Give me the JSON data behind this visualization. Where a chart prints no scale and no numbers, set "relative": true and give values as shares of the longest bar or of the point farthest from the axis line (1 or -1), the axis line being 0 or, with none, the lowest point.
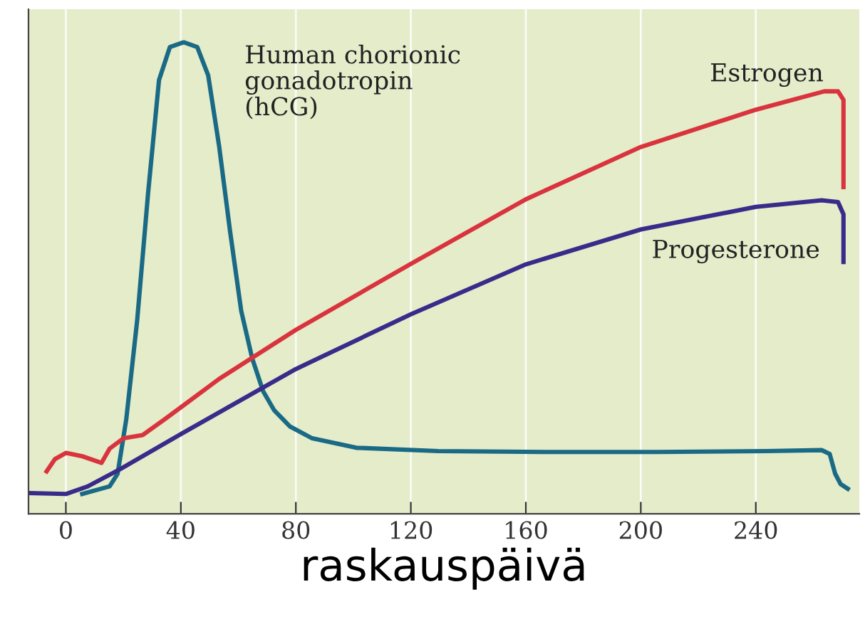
{
  "chart_data": {
    "type": "line",
    "relative": true,
    "xlabel": "raskauspäivä",
    "xlim": [
      -13,
      276
    ],
    "xticks": [
      0,
      40,
      80,
      120,
      160,
      200,
      240
    ],
    "grid": "x",
    "marker": "none",
    "line_style": "solid",
    "series": [
      {
        "name": "Human chorionic\ngonadotropin\n(hCG)",
        "color": "#1a6a86",
        "x": [
          5.7,
          15.2,
          18,
          21,
          24.8,
          28.6,
          32.4,
          36.2,
          41,
          45.7,
          49.5,
          53.3,
          57.1,
          61,
          64.8,
          68.6,
          72.4,
          78,
          85.7,
          101,
          129.5,
          167.6,
          205.7,
          243.8,
          262.9,
          265.7,
          267.6,
          269.5,
          272
        ],
        "values": [
          0.042,
          0.058,
          0.085,
          0.2,
          0.41,
          0.68,
          0.92,
          0.99,
          1.0,
          0.99,
          0.93,
          0.78,
          0.6,
          0.43,
          0.33,
          0.26,
          0.22,
          0.185,
          0.16,
          0.14,
          0.133,
          0.131,
          0.131,
          0.133,
          0.135,
          0.127,
          0.085,
          0.063,
          0.053
        ]
      },
      {
        "name": "Estrogen",
        "color": "#d9343e",
        "x": [
          -6.7,
          -3.8,
          0,
          5.7,
          12.4,
          15.2,
          20,
          26.7,
          34.3,
          53.3,
          80,
          120,
          160,
          200,
          240,
          263.8,
          268.6,
          270.5,
          270.5
        ],
        "values": [
          0.09,
          0.116,
          0.129,
          0.122,
          0.108,
          0.138,
          0.16,
          0.167,
          0.2,
          0.286,
          0.39,
          0.53,
          0.667,
          0.778,
          0.857,
          0.896,
          0.896,
          0.878,
          0.693
        ]
      },
      {
        "name": "Progesterone",
        "color": "#3a2a8a",
        "x": [
          -12.4,
          0,
          7.6,
          19,
          40,
          80,
          120,
          160,
          200,
          240,
          262.9,
          268.6,
          270.5,
          270.5
        ],
        "values": [
          0.044,
          0.042,
          0.058,
          0.095,
          0.169,
          0.307,
          0.423,
          0.529,
          0.603,
          0.651,
          0.665,
          0.661,
          0.635,
          0.534
        ]
      }
    ]
  }
}
